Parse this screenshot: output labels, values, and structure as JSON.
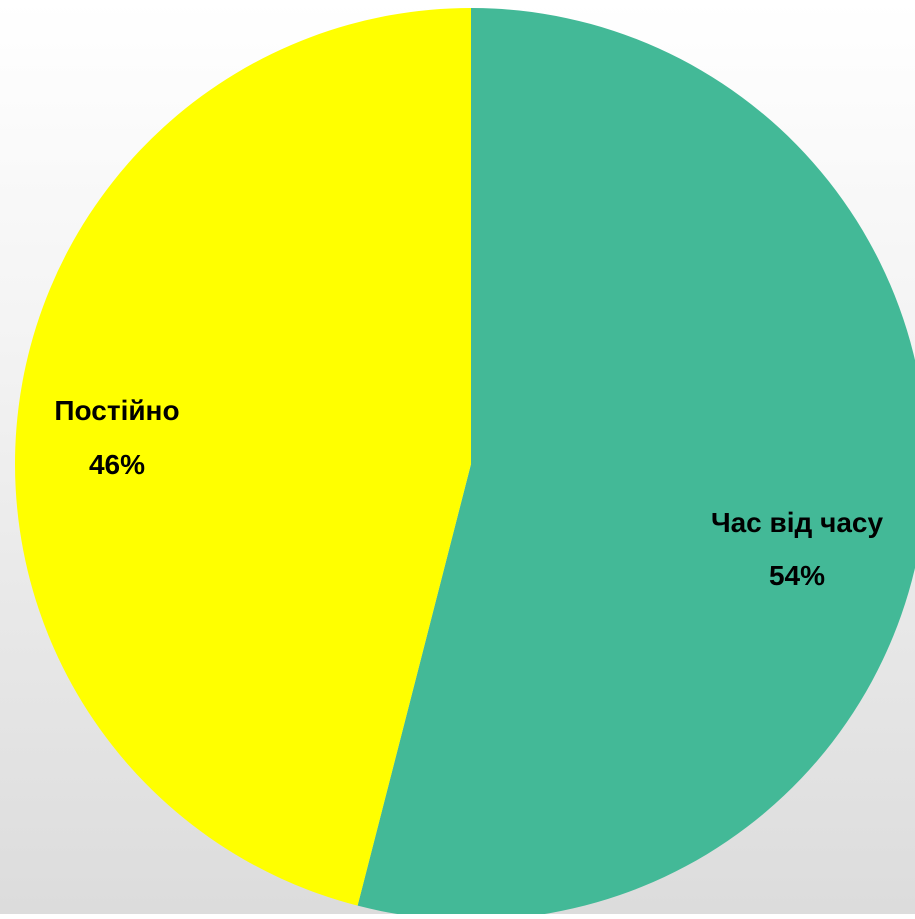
{
  "chart_data": {
    "type": "pie",
    "categories": [
      "Час від часу",
      "Постійно"
    ],
    "values": [
      54,
      46
    ],
    "labels": [
      "54%",
      "46%"
    ],
    "colors": [
      "#43B997",
      "#FFFF00"
    ],
    "start": "12 o'clock",
    "direction": "clockwise",
    "legend": "none",
    "title": ""
  }
}
